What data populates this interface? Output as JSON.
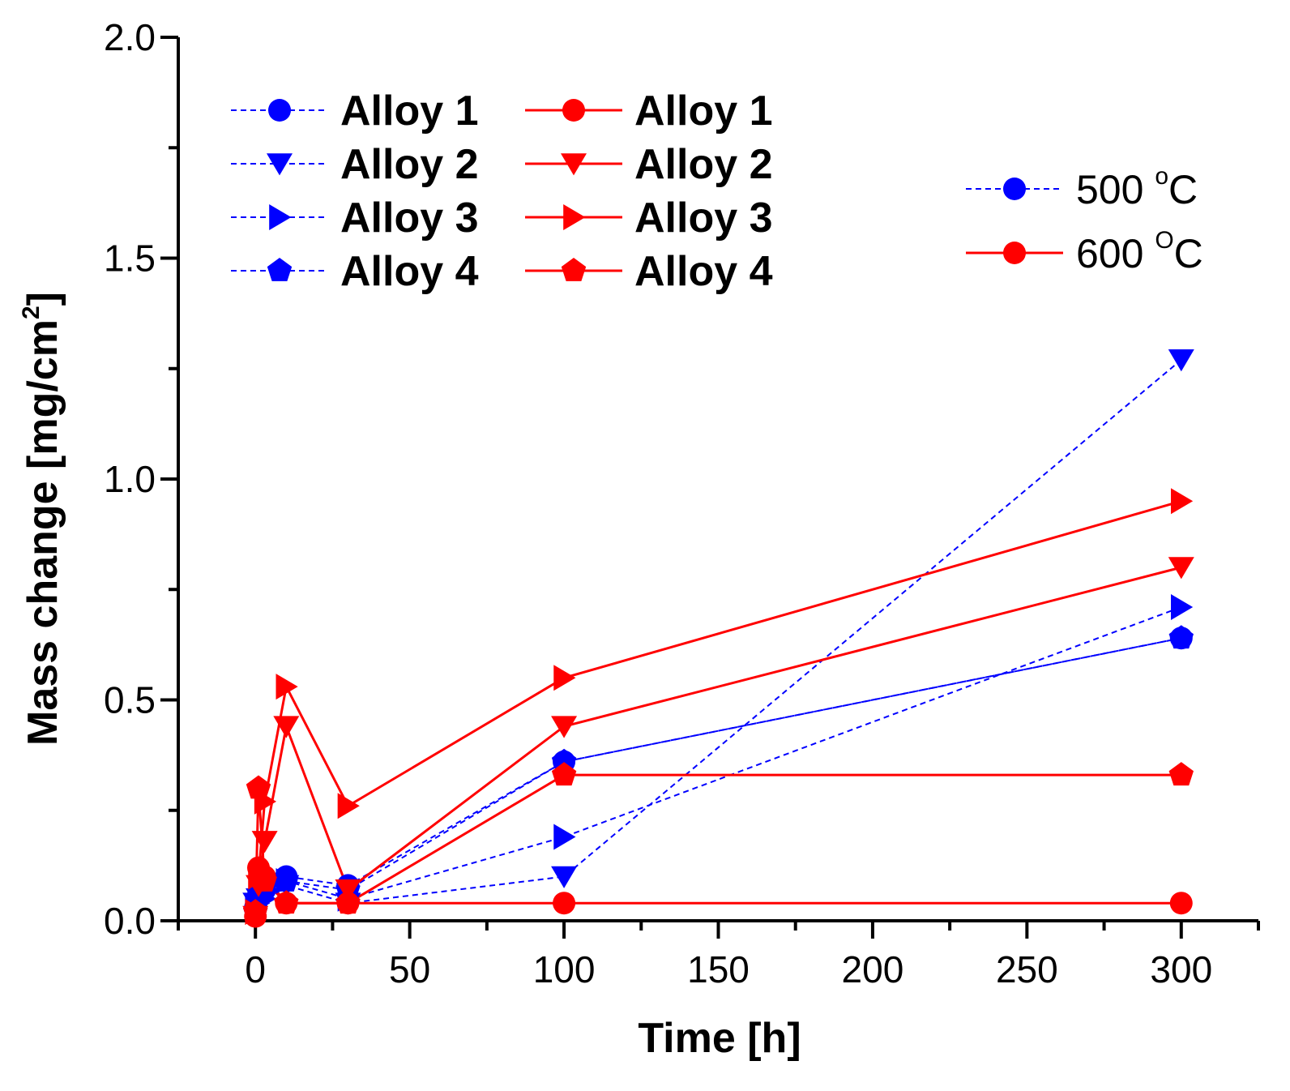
{
  "chart_data": {
    "type": "line",
    "title": "",
    "xlabel": "Time [h]",
    "ylabel_main": "Mass change [mg/cm",
    "ylabel_sup": "2",
    "ylabel_end": "]",
    "xlim": [
      -25,
      325
    ],
    "ylim": [
      0.0,
      2.0
    ],
    "xticks": [
      0,
      50,
      100,
      150,
      200,
      250,
      300
    ],
    "xtick_labels": [
      "0",
      "50",
      "100",
      "150",
      "200",
      "250",
      "300"
    ],
    "yticks": [
      0.0,
      0.5,
      1.0,
      1.5,
      2.0
    ],
    "ytick_labels": [
      "0.0",
      "0.5",
      "1.0",
      "1.5",
      "2.0"
    ],
    "legend_position": "top-left",
    "series": [
      {
        "name": "Alloy 1",
        "temp": "500",
        "color": "#0000ff",
        "dashed": true,
        "marker": "circle",
        "x": [
          0,
          1,
          3,
          10,
          30,
          100,
          300
        ],
        "y": [
          0.03,
          0.06,
          0.07,
          0.1,
          0.08,
          0.36,
          0.64
        ]
      },
      {
        "name": "Alloy 2",
        "temp": "500",
        "color": "#0000ff",
        "dashed": true,
        "marker": "triangle-down",
        "x": [
          0,
          1,
          3,
          10,
          30,
          100,
          300
        ],
        "y": [
          0.04,
          0.05,
          0.06,
          0.08,
          0.04,
          0.1,
          1.27
        ]
      },
      {
        "name": "Alloy 3",
        "temp": "500",
        "color": "#0000ff",
        "dashed": true,
        "marker": "triangle-right",
        "x": [
          0,
          1,
          3,
          10,
          30,
          100,
          300
        ],
        "y": [
          0.03,
          0.04,
          0.05,
          0.09,
          0.05,
          0.19,
          0.71
        ]
      },
      {
        "name": "Alloy 4",
        "temp": "500",
        "color": "#0000ff",
        "dashed": true,
        "marker": "pentagon",
        "x": [
          0,
          1,
          3,
          10,
          30,
          100,
          300
        ],
        "y": [
          0.02,
          0.05,
          0.08,
          0.09,
          0.07,
          0.36,
          0.64
        ]
      },
      {
        "name": "Alloy 1",
        "temp": "600",
        "color": "#ff0000",
        "dashed": false,
        "marker": "circle",
        "x": [
          0,
          1,
          3,
          10,
          30,
          100,
          300
        ],
        "y": [
          0.01,
          0.12,
          0.1,
          0.04,
          0.04,
          0.04,
          0.04
        ]
      },
      {
        "name": "Alloy 2",
        "temp": "600",
        "color": "#ff0000",
        "dashed": false,
        "marker": "triangle-down",
        "x": [
          0,
          1,
          3,
          10,
          30,
          100,
          300
        ],
        "y": [
          0.01,
          0.08,
          0.18,
          0.44,
          0.07,
          0.44,
          0.8
        ]
      },
      {
        "name": "Alloy 3",
        "temp": "600",
        "color": "#ff0000",
        "dashed": false,
        "marker": "triangle-right",
        "x": [
          0,
          1,
          3,
          10,
          30,
          100,
          300
        ],
        "y": [
          0.02,
          0.1,
          0.27,
          0.53,
          0.26,
          0.55,
          0.95
        ]
      },
      {
        "name": "Alloy 4",
        "temp": "600",
        "color": "#ff0000",
        "dashed": false,
        "marker": "pentagon",
        "x": [
          0,
          1,
          3,
          10,
          30,
          100,
          300
        ],
        "y": [
          0.02,
          0.3,
          0.09,
          0.04,
          0.04,
          0.33,
          0.33
        ]
      }
    ],
    "temperature_legend": [
      {
        "label": "500 ",
        "sup": "o",
        "unit": "C",
        "color": "#0000ff",
        "dashed": true
      },
      {
        "label": "600 ",
        "sup": "O",
        "unit": "C",
        "color": "#ff0000",
        "dashed": false
      }
    ]
  }
}
